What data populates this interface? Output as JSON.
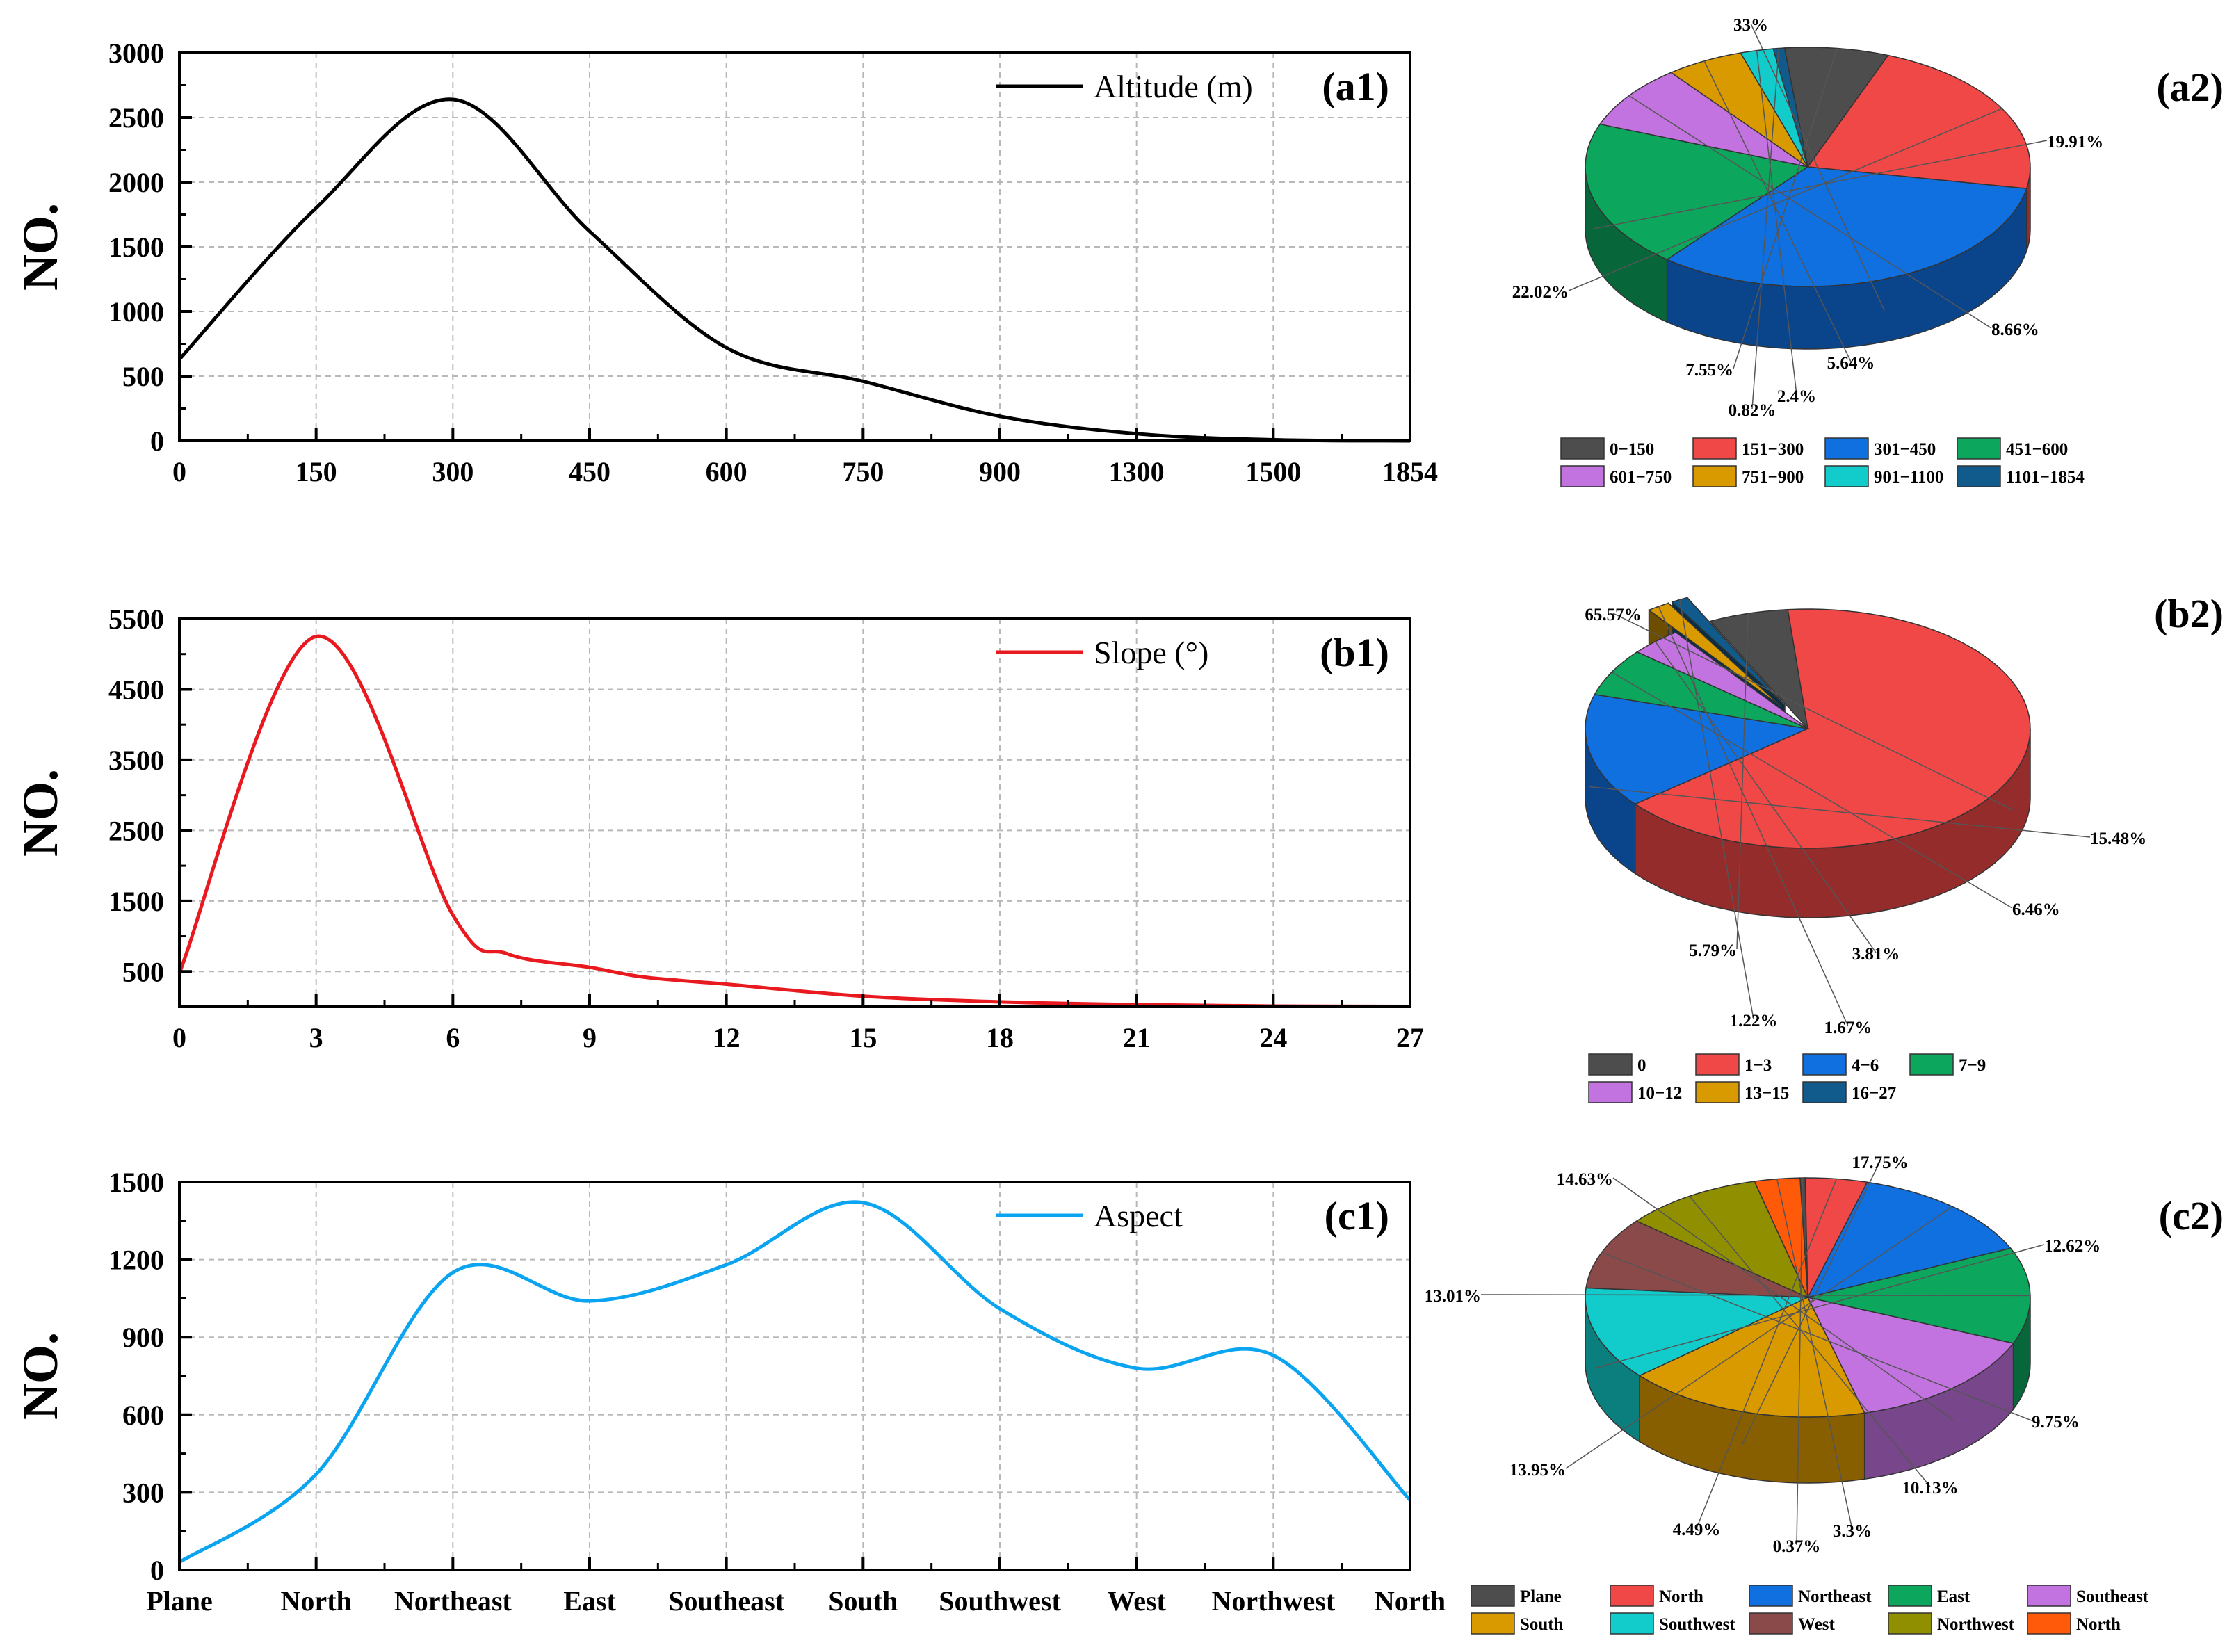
{
  "y_axis_label": "NO.",
  "chart_data": [
    {
      "id": "a1",
      "type": "line",
      "panel_label": "(a1)",
      "legend": "Altitude (m)",
      "color": "#000000",
      "ylabel": "NO.",
      "categories": [
        "0",
        "150",
        "300",
        "450",
        "600",
        "750",
        "900",
        "1300",
        "1500",
        "1854"
      ],
      "yticks": [
        0,
        500,
        1000,
        1500,
        2000,
        2500,
        3000
      ],
      "ylim": [
        0,
        3000
      ],
      "values": [
        [
          0,
          630
        ],
        [
          1,
          1800
        ],
        [
          2,
          2640
        ],
        [
          3,
          1620
        ],
        [
          4,
          720
        ],
        [
          5,
          460
        ],
        [
          6,
          190
        ],
        [
          7,
          55
        ],
        [
          8,
          8
        ],
        [
          9,
          0
        ]
      ]
    },
    {
      "id": "b1",
      "type": "line",
      "panel_label": "(b1)",
      "legend": "Slope (°)",
      "color": "#e8191f",
      "ylabel": "NO.",
      "categories": [
        "0",
        "3",
        "6",
        "9",
        "12",
        "15",
        "18",
        "21",
        "24",
        "27"
      ],
      "yticks": [
        500,
        1500,
        2500,
        3500,
        4500,
        5500
      ],
      "ylim": [
        0,
        5500
      ],
      "values": [
        [
          0,
          480
        ],
        [
          1,
          5250
        ],
        [
          2,
          1300
        ],
        [
          2.4,
          750
        ],
        [
          3,
          560
        ],
        [
          3.4,
          420
        ],
        [
          4,
          320
        ],
        [
          5,
          150
        ],
        [
          6,
          70
        ],
        [
          7,
          30
        ],
        [
          8,
          10
        ],
        [
          9,
          5
        ]
      ]
    },
    {
      "id": "c1",
      "type": "line",
      "panel_label": "(c1)",
      "legend": "Aspect",
      "color": "#0aa4f0",
      "ylabel": "NO.",
      "categories": [
        "Plane",
        "North",
        "Northeast",
        "East",
        "Southeast",
        "South",
        "Southwest",
        "West",
        "Northwest",
        "North"
      ],
      "yticks": [
        0,
        300,
        600,
        900,
        1200,
        1500
      ],
      "ylim": [
        0,
        1500
      ],
      "values": [
        [
          0,
          30
        ],
        [
          1,
          370
        ],
        [
          2,
          1150
        ],
        [
          3,
          1040
        ],
        [
          4,
          1180
        ],
        [
          5,
          1420
        ],
        [
          6,
          1010
        ],
        [
          7,
          780
        ],
        [
          8,
          830
        ],
        [
          9,
          270
        ]
      ]
    },
    {
      "id": "a2",
      "type": "pie",
      "panel_label": "(a2)",
      "slices": [
        {
          "label": "0−150",
          "value": 7.55,
          "text": "7.55%",
          "color": "#4d4d4d"
        },
        {
          "label": "151−300",
          "value": 22.02,
          "text": "22.02%",
          "color": "#f04747"
        },
        {
          "label": "301−450",
          "value": 33,
          "text": "33%",
          "color": "#1070e0"
        },
        {
          "label": "451−600",
          "value": 19.91,
          "text": "19.91%",
          "color": "#0da65d"
        },
        {
          "label": "601−750",
          "value": 8.66,
          "text": "8.66%",
          "color": "#c273e0"
        },
        {
          "label": "751−900",
          "value": 5.64,
          "text": "5.64%",
          "color": "#d99a00"
        },
        {
          "label": "901−1100",
          "value": 2.4,
          "text": "2.4%",
          "color": "#12cccc"
        },
        {
          "label": "1101−1854",
          "value": 0.82,
          "text": "0.82%",
          "color": "#105a8c"
        }
      ]
    },
    {
      "id": "b2",
      "type": "pie",
      "panel_label": "(b2)",
      "slices": [
        {
          "label": "0",
          "value": 5.79,
          "text": "5.79%",
          "color": "#4d4d4d"
        },
        {
          "label": "1−3",
          "value": 65.57,
          "text": "65.57%",
          "color": "#f04747"
        },
        {
          "label": "4−6",
          "value": 15.48,
          "text": "15.48%",
          "color": "#1070e0"
        },
        {
          "label": "7−9",
          "value": 6.46,
          "text": "6.46%",
          "color": "#0da65d"
        },
        {
          "label": "10−12",
          "value": 3.81,
          "text": "3.81%",
          "color": "#c273e0"
        },
        {
          "label": "13−15",
          "value": 1.67,
          "text": "1.67%",
          "color": "#d99a00"
        },
        {
          "label": "16−27",
          "value": 1.22,
          "text": "1.22%",
          "color": "#105a8c"
        }
      ]
    },
    {
      "id": "c2",
      "type": "pie",
      "panel_label": "(c2)",
      "slices": [
        {
          "label": "Plane",
          "value": 0.37,
          "text": "0.37%",
          "color": "#4d4d4d"
        },
        {
          "label": "North",
          "value": 4.49,
          "text": "4.49%",
          "color": "#f04747"
        },
        {
          "label": "Northeast",
          "value": 13.95,
          "text": "13.95%",
          "color": "#1070e0"
        },
        {
          "label": "East",
          "value": 13.01,
          "text": "13.01%",
          "color": "#0da65d"
        },
        {
          "label": "Southeast",
          "value": 14.63,
          "text": "14.63%",
          "color": "#c273e0"
        },
        {
          "label": "South",
          "value": 17.75,
          "text": "17.75%",
          "color": "#d99a00"
        },
        {
          "label": "Southwest",
          "value": 12.62,
          "text": "12.62%",
          "color": "#12cccc"
        },
        {
          "label": "West",
          "value": 9.75,
          "text": "9.75%",
          "color": "#8b4a4a"
        },
        {
          "label": "Northwest",
          "value": 10.13,
          "text": "10.13%",
          "color": "#8f8f00"
        },
        {
          "label": "North",
          "value": 3.3,
          "text": "3.3%",
          "color": "#ff5a0a"
        }
      ]
    }
  ]
}
